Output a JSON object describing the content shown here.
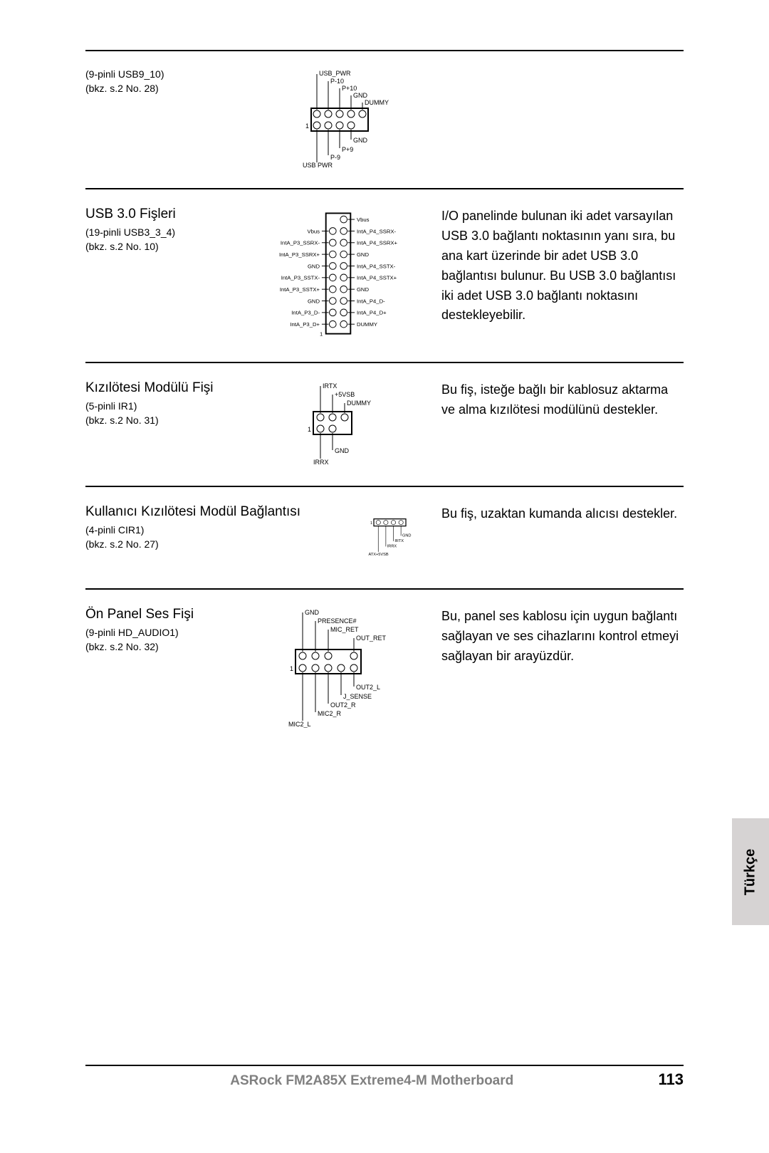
{
  "sections": [
    {
      "title": "",
      "sub1": "(9-pinli USB9_10)",
      "sub2": "(bkz. s.2 No. 28)",
      "desc": ""
    },
    {
      "title": "USB 3.0 Fişleri",
      "sub1": "(19-pinli USB3_3_4)",
      "sub2": "(bkz. s.2 No. 10)",
      "desc": "I/O panelinde bulunan iki adet varsayılan USB 3.0 bağlantı noktasının yanı sıra, bu ana kart üzerinde bir adet USB 3.0 bağlantısı bulunur. Bu USB 3.0 bağlantısı iki adet USB 3.0 bağlantı noktasını destekleyebilir."
    },
    {
      "title": "Kızılötesi Modülü Fişi",
      "sub1": "(5-pinli IR1)",
      "sub2": "(bkz. s.2 No. 31)",
      "desc": "Bu fiş, isteğe bağlı bir kablosuz aktarma ve alma kızılötesi modülünü destekler."
    },
    {
      "title": "Kullanıcı Kızılötesi Modül Bağlantısı",
      "sub1": "(4-pinli CIR1)",
      "sub2": "(bkz. s.2 No. 27)",
      "desc": "Bu fiş, uzaktan kumanda alıcısı destekler."
    },
    {
      "title": "Ön Panel Ses Fişi",
      "sub1": "(9-pinli HD_AUDIO1)",
      "sub2": "(bkz. s.2 No. 32)",
      "desc": "Bu, panel ses kablosu için uygun bağlantı sağlayan ve ses cihazlarını kontrol etmeyi sağlayan bir arayüzdür."
    }
  ],
  "diagrams": {
    "usb2": {
      "top_labels": [
        "USB_PWR",
        "P-10",
        "P+10",
        "GND",
        "DUMMY"
      ],
      "bottom_labels": [
        "USB PWR",
        "P-9",
        "P+9",
        "GND"
      ],
      "pin1": "1"
    },
    "usb3": {
      "left": [
        "Vbus",
        "IntA_P3_SSRX-",
        "IntA_P3_SSRX+",
        "GND",
        "IntA_P3_SSTX-",
        "IntA_P3_SSTX+",
        "GND",
        "IntA_P3_D-",
        "IntA_P3_D+"
      ],
      "right": [
        "Vbus",
        "IntA_P4_SSRX-",
        "IntA_P4_SSRX+",
        "GND",
        "IntA_P4_SSTX-",
        "IntA_P4_SSTX+",
        "GND",
        "IntA_P4_D-",
        "IntA_P4_D+",
        "DUMMY"
      ],
      "pin1": "1"
    },
    "ir1": {
      "top": [
        "IRTX",
        "+5VSB",
        "DUMMY"
      ],
      "bottom": [
        "IRRX",
        "GND"
      ],
      "pin1": "1"
    },
    "cir1": {
      "labels": [
        "ATX+5VSB",
        "IRRX",
        "IRTX",
        "GND"
      ],
      "pin1": "1"
    },
    "audio": {
      "top": [
        "GND",
        "PRESENCE#",
        "MIC_RET",
        "OUT_RET"
      ],
      "bottom": [
        "MIC2_L",
        "MIC2_R",
        "OUT2_R",
        "J_SENSE",
        "OUT2_L"
      ],
      "pin1": "1"
    }
  },
  "footer": {
    "text": "ASRock  FM2A85X Extreme4-M  Motherboard",
    "page": "113"
  },
  "lang_tab": "Türkçe"
}
